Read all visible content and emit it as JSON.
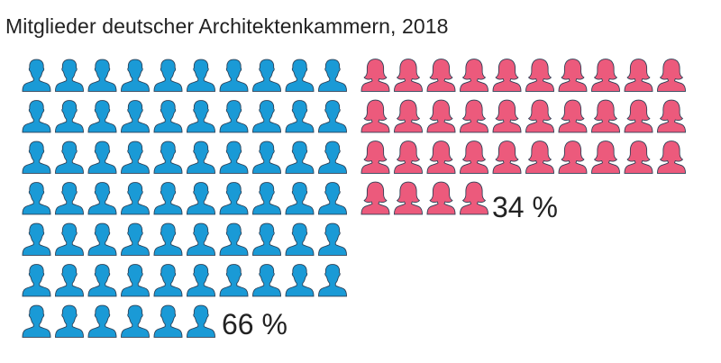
{
  "title": "Mitglieder deutscher Architektenkammern, 2018",
  "chart_data": {
    "type": "pictogram",
    "title": "Mitglieder deutscher Architektenkammern, 2018",
    "unit": "%",
    "series": [
      {
        "name": "",
        "icon": "male-person-icon",
        "value": 66,
        "label": "66 %",
        "color": "#1a9ad6"
      },
      {
        "name": "",
        "icon": "female-person-icon",
        "value": 34,
        "label": "34 %",
        "color": "#ec5a7c"
      }
    ],
    "icons_per_row": 10
  }
}
